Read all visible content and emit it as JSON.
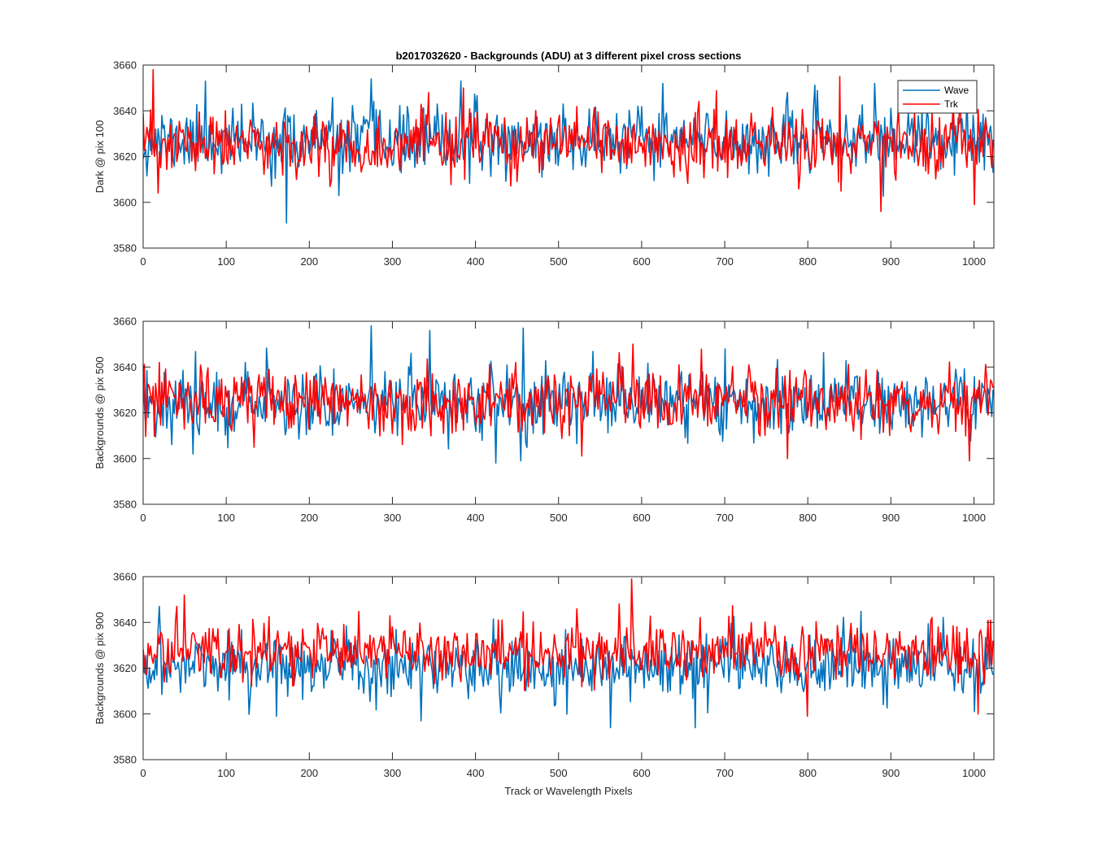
{
  "chart_data": [
    {
      "type": "line",
      "title": "b2017032620 - Backgrounds (ADU) at 3 different pixel cross sections",
      "ylabel": "Dark @ pix 100",
      "xlabel": "",
      "xlim": [
        0,
        1024
      ],
      "ylim": [
        3580,
        3660
      ],
      "xticks": [
        0,
        100,
        200,
        300,
        400,
        500,
        600,
        700,
        800,
        900,
        1000
      ],
      "yticks": [
        3580,
        3600,
        3620,
        3640,
        3660
      ],
      "legend": {
        "position": "top-right",
        "entries": [
          "Wave",
          "Trk"
        ]
      },
      "series": [
        {
          "name": "Wave",
          "color": "#0072BD",
          "mean": 3627,
          "stdev": 7,
          "seed": 11,
          "x_step": 1.5,
          "highlights": [
            [
              75,
              3653
            ],
            [
              173,
              3591
            ],
            [
              235,
              3603
            ],
            [
              275,
              3654
            ],
            [
              383,
              3653
            ],
            [
              625,
              3652
            ],
            [
              880,
              3652
            ]
          ]
        },
        {
          "name": "Trk",
          "color": "#FF0000",
          "mean": 3625,
          "stdev": 7,
          "seed": 23,
          "x_step": 1.5,
          "highlights": [
            [
              12,
              3658
            ],
            [
              18,
              3604
            ],
            [
              385,
              3650
            ],
            [
              838,
              3655
            ],
            [
              888,
              3596
            ],
            [
              1000,
              3599
            ]
          ]
        }
      ]
    },
    {
      "type": "line",
      "title": "",
      "ylabel": "Backgrounds @ pix 500",
      "xlabel": "",
      "xlim": [
        0,
        1024
      ],
      "ylim": [
        3580,
        3660
      ],
      "xticks": [
        0,
        100,
        200,
        300,
        400,
        500,
        600,
        700,
        800,
        900,
        1000
      ],
      "yticks": [
        3580,
        3600,
        3620,
        3640,
        3660
      ],
      "series": [
        {
          "name": "Wave",
          "color": "#0072BD",
          "mean": 3625,
          "stdev": 7.5,
          "seed": 37,
          "x_step": 1.5,
          "highlights": [
            [
              275,
              3658
            ],
            [
              345,
              3656
            ],
            [
              457,
              3657
            ],
            [
              425,
              3598
            ],
            [
              455,
              3599
            ],
            [
              60,
              3602
            ]
          ]
        },
        {
          "name": "Trk",
          "color": "#FF0000",
          "mean": 3625,
          "stdev": 7,
          "seed": 53,
          "x_step": 1.5,
          "highlights": [
            [
              590,
              3650
            ],
            [
              775,
              3600
            ],
            [
              995,
              3599
            ],
            [
              20,
              3642
            ]
          ]
        }
      ]
    },
    {
      "type": "line",
      "title": "",
      "ylabel": "Backgrounds @ pix 900",
      "xlabel": "Track or Wavelength Pixels",
      "xlim": [
        0,
        1024
      ],
      "ylim": [
        3580,
        3660
      ],
      "xticks": [
        0,
        100,
        200,
        300,
        400,
        500,
        600,
        700,
        800,
        900,
        1000
      ],
      "yticks": [
        3580,
        3600,
        3620,
        3640,
        3660
      ],
      "series": [
        {
          "name": "Wave",
          "color": "#0072BD",
          "mean": 3621,
          "stdev": 7,
          "seed": 71,
          "x_step": 1.5,
          "highlights": [
            [
              563,
              3594
            ],
            [
              665,
              3594
            ],
            [
              335,
              3597
            ],
            [
              160,
              3599
            ],
            [
              1000,
              3601
            ],
            [
              20,
              3647
            ]
          ]
        },
        {
          "name": "Trk",
          "color": "#FF0000",
          "mean": 3627,
          "stdev": 6.5,
          "seed": 97,
          "x_step": 1.5,
          "highlights": [
            [
              588,
              3659
            ],
            [
              50,
              3652
            ],
            [
              40,
              3647
            ],
            [
              800,
              3599
            ],
            [
              1020,
              3641
            ],
            [
              1005,
              3600
            ]
          ]
        }
      ]
    }
  ]
}
